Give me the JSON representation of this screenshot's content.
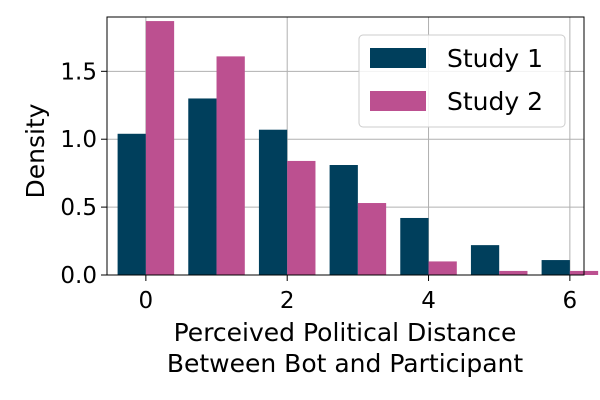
{
  "chart_data": {
    "type": "bar",
    "title": "",
    "xlabel_lines": [
      "Perceived Political Distance",
      "Between Bot and Participant"
    ],
    "ylabel": "Density",
    "x": [
      0,
      1,
      2,
      3,
      4,
      5,
      6
    ],
    "xlim": [
      -0.55,
      6.2
    ],
    "ylim": [
      0,
      1.9
    ],
    "xticks": [
      0,
      2,
      4,
      6
    ],
    "yticks": [
      0.0,
      0.5,
      1.0,
      1.5
    ],
    "ytick_labels": [
      "0.0",
      "0.5",
      "1.0",
      "1.5"
    ],
    "grid": true,
    "legend_position": "top-right",
    "series": [
      {
        "name": "Study 1",
        "color": "#003f5c",
        "values": [
          1.04,
          1.3,
          1.07,
          0.81,
          0.42,
          0.22,
          0.11
        ]
      },
      {
        "name": "Study 2",
        "color": "#bc5090",
        "values": [
          1.87,
          1.61,
          0.84,
          0.53,
          0.1,
          0.03,
          0.03
        ]
      }
    ]
  }
}
